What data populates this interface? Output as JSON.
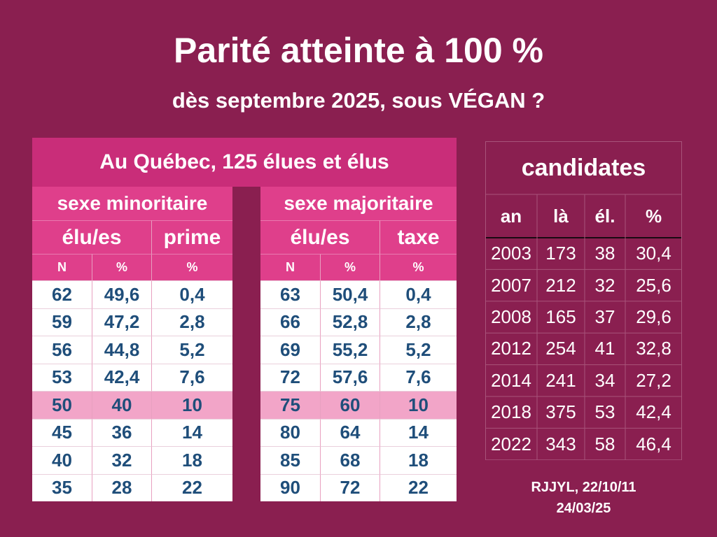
{
  "title": "Parité atteinte à 100 %",
  "subtitle": "dès septembre 2025, sous VÉGAN ?",
  "left_table": {
    "header": "Au Québec, 125 élues et élus",
    "group_minority": "sexe minoritaire",
    "group_majority": "sexe majoritaire",
    "minority_cols": {
      "elus": "élu/es",
      "extra": "prime"
    },
    "majority_cols": {
      "elus": "élu/es",
      "extra": "taxe"
    },
    "units": [
      "N",
      "%",
      "%"
    ],
    "highlight_row": 4,
    "rows": [
      {
        "min": [
          "62",
          "49,6",
          "0,4"
        ],
        "maj": [
          "63",
          "50,4",
          "0,4"
        ]
      },
      {
        "min": [
          "59",
          "47,2",
          "2,8"
        ],
        "maj": [
          "66",
          "52,8",
          "2,8"
        ]
      },
      {
        "min": [
          "56",
          "44,8",
          "5,2"
        ],
        "maj": [
          "69",
          "55,2",
          "5,2"
        ]
      },
      {
        "min": [
          "53",
          "42,4",
          "7,6"
        ],
        "maj": [
          "72",
          "57,6",
          "7,6"
        ]
      },
      {
        "min": [
          "50",
          "40",
          "10"
        ],
        "maj": [
          "75",
          "60",
          "10"
        ]
      },
      {
        "min": [
          "45",
          "36",
          "14"
        ],
        "maj": [
          "80",
          "64",
          "14"
        ]
      },
      {
        "min": [
          "40",
          "32",
          "18"
        ],
        "maj": [
          "85",
          "68",
          "18"
        ]
      },
      {
        "min": [
          "35",
          "28",
          "22"
        ],
        "maj": [
          "90",
          "72",
          "22"
        ]
      }
    ]
  },
  "right_table": {
    "header": "candidates",
    "columns": [
      "an",
      "là",
      "él.",
      "%"
    ],
    "rows": [
      [
        "2003",
        "173",
        "38",
        "30,4"
      ],
      [
        "2007",
        "212",
        "32",
        "25,6"
      ],
      [
        "2008",
        "165",
        "37",
        "29,6"
      ],
      [
        "2012",
        "254",
        "41",
        "32,8"
      ],
      [
        "2014",
        "241",
        "34",
        "27,2"
      ],
      [
        "2018",
        "375",
        "53",
        "42,4"
      ],
      [
        "2022",
        "343",
        "58",
        "46,4"
      ]
    ]
  },
  "credit": {
    "line1": "RJJYL, 22/10/11",
    "line2": "24/03/25"
  },
  "colors": {
    "background": "#8a1f50",
    "header_pink": "#c92d79",
    "subheader_pink": "#df3f8b",
    "highlight_row": "#f2a5c8",
    "number_blue": "#1f4e7a"
  }
}
